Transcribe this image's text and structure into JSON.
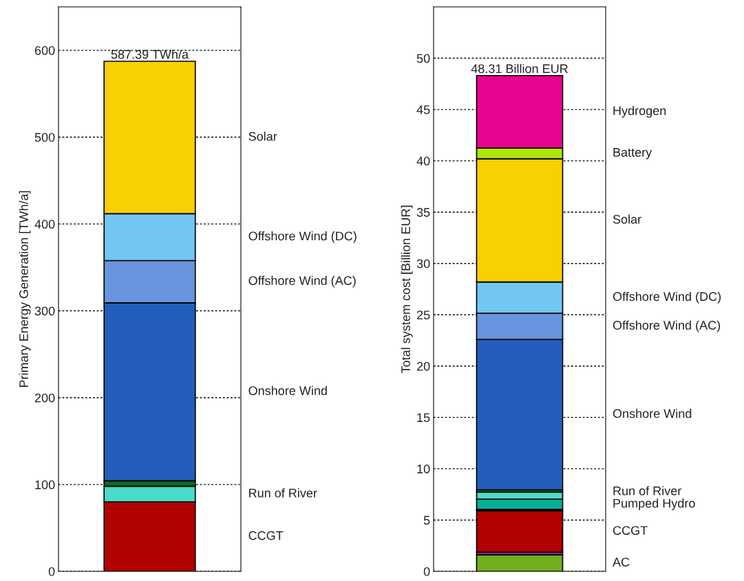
{
  "chart_data": [
    {
      "type": "bar",
      "stacked": true,
      "categories": [
        null
      ],
      "ylabel": "Primary Energy Generation [TWh/a]",
      "ylim": [
        0,
        650
      ],
      "yticks": [
        0,
        100,
        200,
        300,
        400,
        500,
        600
      ],
      "grid": "y",
      "tick_labels": "y",
      "totals": [
        "587.39 TWh/a"
      ],
      "series": [
        {
          "name": "CCGT",
          "color": "#b20101",
          "values": [
            80
          ]
        },
        {
          "name": "Run of River",
          "color": "#4adbc8",
          "values": [
            18
          ]
        },
        {
          "color": "#0e6a1e",
          "values": [
            6.3
          ]
        },
        {
          "name": "Onshore Wind",
          "color": "#235ebc",
          "values": [
            205
          ]
        },
        {
          "name": "Offshore Wind (AC)",
          "color": "#6895dd",
          "values": [
            48.6
          ]
        },
        {
          "name": "Offshore Wind (DC)",
          "color": "#74c6f2",
          "values": [
            54
          ]
        },
        {
          "name": "Solar",
          "color": "#f9d002",
          "values": [
            175.5
          ]
        }
      ]
    },
    {
      "type": "bar",
      "stacked": true,
      "categories": [
        null
      ],
      "ylabel": "Total system cost [Billion EUR]",
      "ylim": [
        0,
        55
      ],
      "yticks": [
        0,
        5,
        10,
        15,
        20,
        25,
        30,
        35,
        40,
        45,
        50
      ],
      "grid": "y",
      "tick_labels": "y",
      "totals": [
        "48.31 Billion EUR"
      ],
      "series": [
        {
          "name": "AC",
          "color": "#70af1d",
          "values": [
            1.6
          ]
        },
        {
          "color": "#8a1caf",
          "values": [
            0.26
          ]
        },
        {
          "name": "CCGT",
          "color": "#b20101",
          "values": [
            4.04
          ]
        },
        {
          "color": "#000000",
          "values": [
            0.13
          ]
        },
        {
          "name": "Pumped Hydro",
          "color": "#08ad97",
          "values": [
            1.0
          ]
        },
        {
          "name": "Run of River",
          "color": "#4adbc8",
          "values": [
            0.7
          ]
        },
        {
          "color": "#0e6a1e",
          "values": [
            0.22
          ]
        },
        {
          "name": "Onshore Wind",
          "color": "#235ebc",
          "values": [
            14.65
          ]
        },
        {
          "name": "Offshore Wind (AC)",
          "color": "#6895dd",
          "values": [
            2.55
          ]
        },
        {
          "name": "Offshore Wind (DC)",
          "color": "#74c6f2",
          "values": [
            3.05
          ]
        },
        {
          "name": "Solar",
          "color": "#f9d002",
          "values": [
            12.0
          ]
        },
        {
          "name": "Battery",
          "color": "#ace60c",
          "values": [
            1.05
          ]
        },
        {
          "name": "Hydrogen",
          "color": "#e8048e",
          "values": [
            7.06
          ]
        }
      ]
    }
  ]
}
